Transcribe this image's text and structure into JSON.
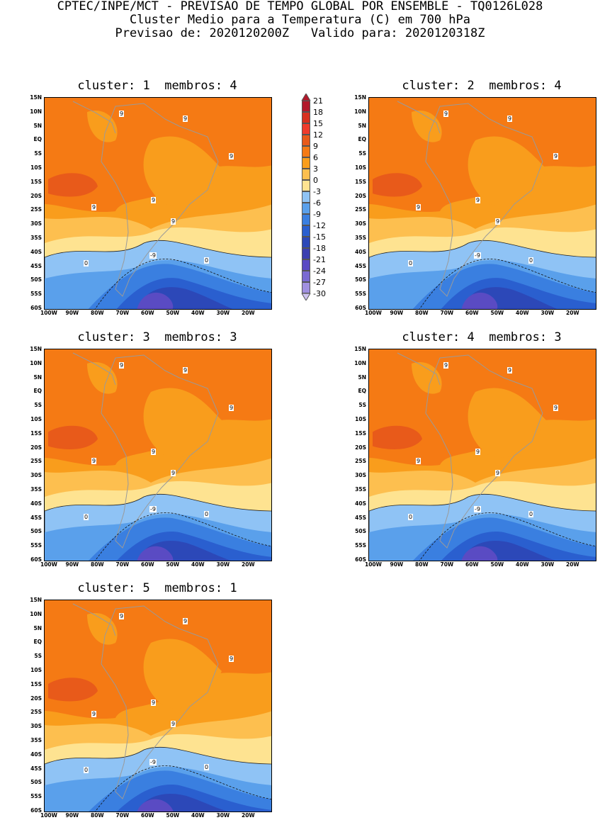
{
  "header": {
    "line1": "CPTEC/INPE/MCT - PREVISAO DE TEMPO GLOBAL POR ENSEMBLE - TQ0126L028",
    "line2": "Cluster Medio para a Temperatura (C) em 700 hPa",
    "line3": "Previsao de: 2020120200Z   Valido para: 2020120318Z"
  },
  "panels": [
    {
      "title": "cluster: 1  membros: 4"
    },
    {
      "title": "cluster: 2  membros: 4"
    },
    {
      "title": "cluster: 3  membros: 3"
    },
    {
      "title": "cluster: 4  membros: 3"
    },
    {
      "title": "cluster: 5  membros: 1"
    }
  ],
  "lat_labels": [
    "15N",
    "10N",
    "5N",
    "EQ",
    "5S",
    "10S",
    "15S",
    "20S",
    "25S",
    "30S",
    "35S",
    "40S",
    "45S",
    "50S",
    "55S",
    "60S"
  ],
  "lon_labels": [
    "100W",
    "90W",
    "80W",
    "70W",
    "60W",
    "50W",
    "40W",
    "30W",
    "20W"
  ],
  "contour_labels": {
    "nine": "9",
    "zero": "0",
    "minus_nine": "-9"
  },
  "legend": {
    "values": [
      "21",
      "18",
      "15",
      "12",
      "9",
      "6",
      "3",
      "0",
      "-3",
      "-6",
      "-9",
      "-12",
      "-15",
      "-18",
      "-21",
      "-24",
      "-27",
      "-30"
    ],
    "colors": [
      "#b2182b",
      "#d7301f",
      "#ef3b2c",
      "#e85a1a",
      "#f57a14",
      "#f99d1c",
      "#fdbf4f",
      "#fee391",
      "#8fc3f5",
      "#5aa0eb",
      "#3a7fe0",
      "#2a5fcf",
      "#2c48b8",
      "#3b3fb0",
      "#5a4bc3",
      "#7a6ad3",
      "#a090e0",
      "#cfc4f0"
    ]
  }
}
